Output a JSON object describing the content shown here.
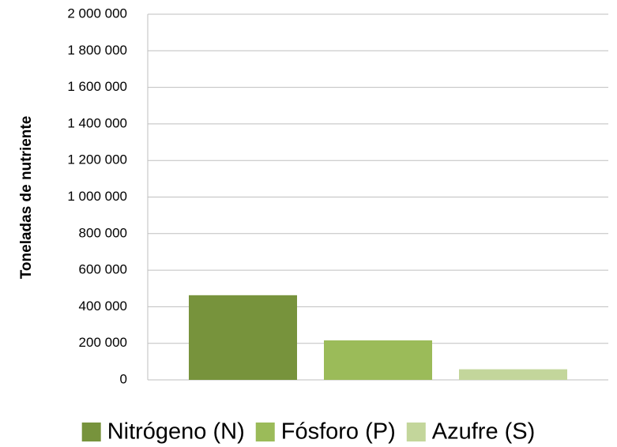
{
  "chart_data": {
    "type": "bar",
    "y_label": "Toneladas de nutriente",
    "categories": [
      null
    ],
    "series": [
      {
        "name": "Nitrógeno (N)",
        "color": "#77933c",
        "values": [
          463000
        ]
      },
      {
        "name": "Fósforo (P)",
        "color": "#9bbb59",
        "values": [
          216000
        ]
      },
      {
        "name": "Azufre (S)",
        "color": "#c3d69b",
        "values": [
          58000
        ]
      }
    ],
    "ylim": [
      0,
      2000000
    ],
    "yticks": [
      0,
      {
        "value": 200000,
        "label": "200 000"
      },
      {
        "value": 400000,
        "label": "400 000"
      },
      {
        "value": 600000,
        "label": "600 000"
      },
      {
        "value": 800000,
        "label": "800 000"
      },
      {
        "value": 1000000,
        "label": "1 000 000"
      },
      {
        "value": 1200000,
        "label": "1 200 000"
      },
      {
        "value": 1400000,
        "label": "1 400 000"
      },
      {
        "value": 1600000,
        "label": "1 600 000"
      },
      {
        "value": 1800000,
        "label": "1 800 000"
      },
      {
        "value": 2000000,
        "label": "2 000 000"
      }
    ],
    "grid": true,
    "legend": "bottom"
  }
}
